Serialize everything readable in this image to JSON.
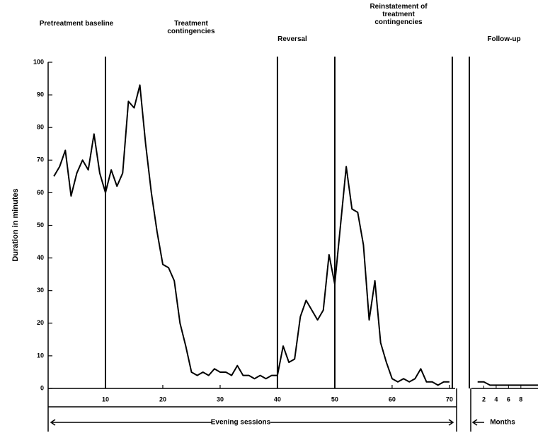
{
  "chart_data": {
    "type": "line",
    "y_label": "Duration in minutes",
    "x_label": "Evening sessions",
    "x2_label": "Months",
    "phases": [
      "Pretreatment baseline",
      "Treatment contingencies",
      "Reversal",
      "Reinstatement of treatment contingencies",
      "Follow-up"
    ],
    "phase_boundaries": [
      10,
      40,
      50,
      70.5
    ],
    "ylim": [
      0,
      100
    ],
    "yticks": [
      0,
      10,
      20,
      30,
      40,
      50,
      60,
      70,
      80,
      90,
      100
    ],
    "xlim": [
      0,
      71
    ],
    "xticks": [
      10,
      20,
      30,
      40,
      50,
      60,
      70
    ],
    "x2lim": [
      0,
      11
    ],
    "x2ticks": [
      2,
      4,
      6,
      8
    ],
    "color": "#000000",
    "series": [
      {
        "x": [
          1,
          2,
          3,
          4,
          5,
          6,
          7,
          8,
          9,
          10,
          11,
          12,
          13,
          14,
          15,
          16,
          17,
          18,
          19,
          20,
          21,
          22,
          23,
          24,
          25,
          26,
          27,
          28,
          29,
          30,
          31,
          32,
          33,
          34,
          35,
          36,
          37,
          38,
          39,
          40,
          41,
          42,
          43,
          44,
          45,
          46,
          47,
          48,
          49,
          50,
          51,
          52,
          53,
          54,
          55,
          56,
          57,
          58,
          59,
          60,
          61,
          62,
          63,
          64,
          65,
          66,
          67,
          68,
          69,
          70
        ],
        "values": [
          65,
          68,
          73,
          59,
          66,
          70,
          67,
          78,
          66,
          60,
          67,
          62,
          66,
          88,
          86,
          93,
          75,
          60,
          48,
          38,
          37,
          33,
          20,
          13,
          5,
          4,
          5,
          4,
          6,
          5,
          5,
          4,
          7,
          4,
          4,
          3,
          4,
          3,
          4,
          4,
          13,
          8,
          9,
          22,
          27,
          24,
          21,
          24,
          41,
          32,
          50,
          68,
          55,
          54,
          44,
          21,
          33,
          14,
          8,
          3,
          2,
          3,
          2,
          3,
          6,
          2,
          2,
          1,
          2,
          2
        ]
      },
      {
        "axis": "x2",
        "x": [
          1,
          2,
          3,
          4,
          5,
          6,
          7,
          8,
          9,
          10,
          11
        ],
        "values": [
          2,
          2,
          1,
          1,
          1,
          1,
          1,
          1,
          1,
          1,
          1
        ]
      }
    ]
  }
}
